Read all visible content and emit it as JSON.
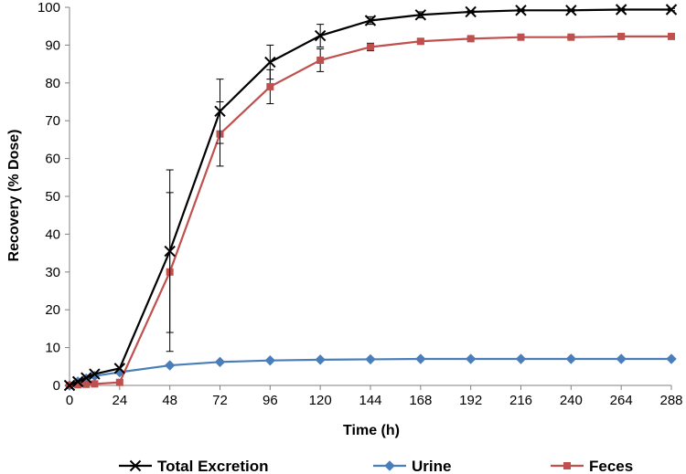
{
  "chart_data": {
    "type": "line",
    "title": "",
    "xlabel": "Time (h)",
    "ylabel": "Recovery (% Dose)",
    "xlim": [
      0,
      288
    ],
    "ylim": [
      0,
      100
    ],
    "x_ticks": [
      0,
      24,
      48,
      72,
      96,
      120,
      144,
      168,
      192,
      216,
      240,
      264,
      288
    ],
    "y_ticks": [
      0,
      10,
      20,
      30,
      40,
      50,
      60,
      70,
      80,
      90,
      100
    ],
    "grid": false,
    "legend_position": "bottom",
    "series": [
      {
        "name": "Total Excretion",
        "color": "#000000",
        "marker": "x",
        "x": [
          0,
          4,
          8,
          12,
          24,
          48,
          72,
          96,
          120,
          144,
          168,
          192,
          216,
          240,
          264,
          288
        ],
        "y": [
          0,
          1,
          2,
          3,
          4.5,
          35.5,
          72.5,
          85.5,
          92.5,
          96.5,
          98,
          98.8,
          99.2,
          99.2,
          99.4,
          99.4
        ],
        "err": [
          0,
          0,
          0,
          0,
          0,
          21.5,
          8.5,
          4.5,
          3,
          1,
          0.8,
          0.3,
          0.3,
          0.3,
          0.3,
          0.3
        ]
      },
      {
        "name": "Urine",
        "color": "#4a7ebb",
        "marker": "diamond",
        "x": [
          0,
          4,
          8,
          12,
          24,
          48,
          72,
          96,
          120,
          144,
          168,
          192,
          216,
          240,
          264,
          288
        ],
        "y": [
          0,
          1,
          1.8,
          2.5,
          3.5,
          5.3,
          6.2,
          6.6,
          6.8,
          6.9,
          7.0,
          7.0,
          7.0,
          7.0,
          7.0,
          7.0
        ],
        "err": [
          0,
          0,
          0,
          0,
          0,
          0,
          0,
          0,
          0,
          0,
          0,
          0,
          0,
          0,
          0,
          0
        ]
      },
      {
        "name": "Feces",
        "color": "#c0504d",
        "marker": "square",
        "x": [
          0,
          4,
          8,
          12,
          24,
          48,
          72,
          96,
          120,
          144,
          168,
          192,
          216,
          240,
          264,
          288
        ],
        "y": [
          0,
          0.2,
          0.3,
          0.4,
          0.8,
          30,
          66.5,
          79,
          86,
          89.5,
          91,
          91.7,
          92.1,
          92.1,
          92.3,
          92.3
        ],
        "err": [
          0,
          0,
          0,
          0,
          0,
          21,
          8.5,
          4.5,
          3,
          1,
          0.6,
          0.3,
          0.3,
          0.3,
          0.3,
          0.3
        ]
      }
    ]
  }
}
